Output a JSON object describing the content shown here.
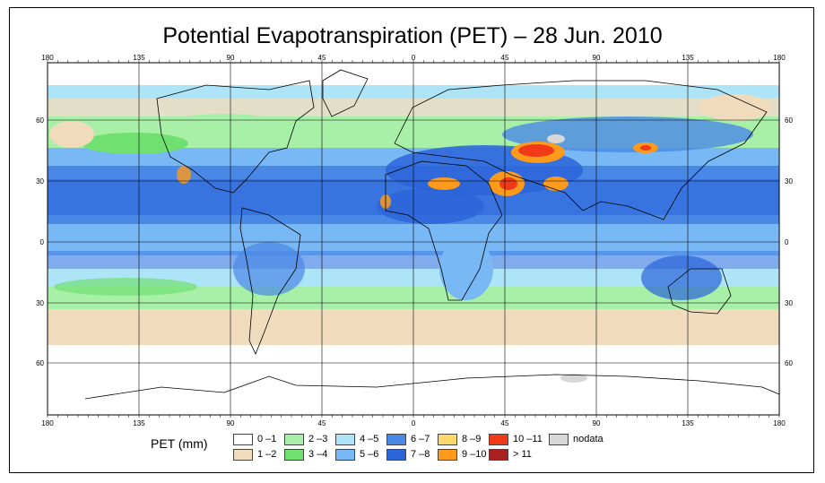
{
  "title": "Potential Evapotranspiration (PET) – 28 Jun. 2010",
  "legend": {
    "label": "PET (mm)",
    "items": [
      {
        "label": "0 –1",
        "color": "#ffffff"
      },
      {
        "label": "1 –2",
        "color": "#f0dcbc"
      },
      {
        "label": "2 –3",
        "color": "#a8f0a8"
      },
      {
        "label": "3 –4",
        "color": "#70e070"
      },
      {
        "label": "4 –5",
        "color": "#aee4f8"
      },
      {
        "label": "5 –6",
        "color": "#78b8f4"
      },
      {
        "label": "6 –7",
        "color": "#4a88e6"
      },
      {
        "label": "7 –8",
        "color": "#2a64d8"
      },
      {
        "label": "8 –9",
        "color": "#ffd76a"
      },
      {
        "label": "9 –10",
        "color": "#ff9a1a"
      },
      {
        "label": "10 –11",
        "color": "#f03a18"
      },
      {
        "label": "> 11",
        "color": "#a82020"
      },
      {
        "label": "nodata",
        "color": "#d8d8d8"
      }
    ]
  },
  "axes": {
    "lon_labels": [
      "180",
      "135",
      "90",
      "45",
      "0",
      "45",
      "90",
      "135",
      "180"
    ],
    "lat_labels": [
      "60",
      "30",
      "0",
      "30",
      "60"
    ]
  },
  "colors": {
    "frame": "#000000",
    "grid": "#000000",
    "coast": "#000000"
  }
}
